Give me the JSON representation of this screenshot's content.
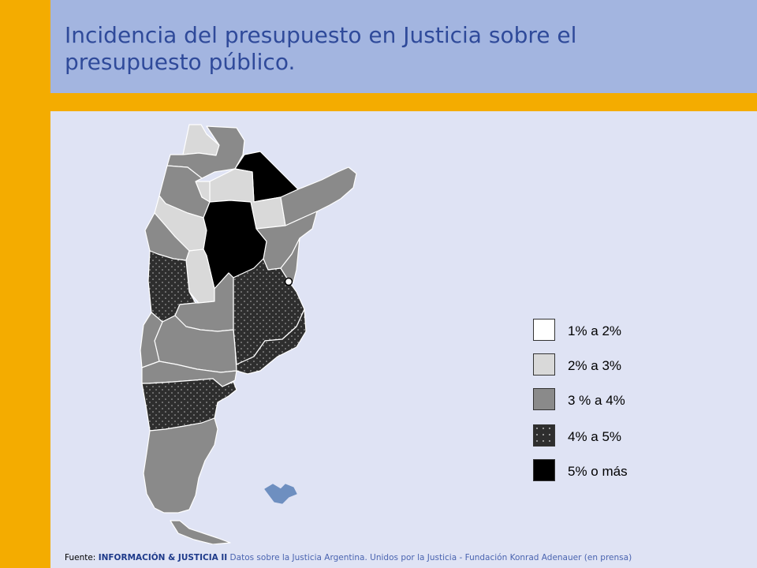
{
  "title": "Incidencia del presupuesto en Justicia sobre el presupuesto público.",
  "colors": {
    "c1": "#ffffff",
    "c2": "#d9d9d9",
    "c3": "#8a8a8a",
    "c4": "#2e2e2e",
    "c5": "#000000",
    "accent_orange": "#f4ac00",
    "title_band": "#a3b5e0",
    "background": "#dfe3f4"
  },
  "legend": [
    {
      "label": "1% a 2%",
      "class": "c1"
    },
    {
      "label": "2% a 3%",
      "class": "c2"
    },
    {
      "label": "3 % a 4%",
      "class": "c3"
    },
    {
      "label": "4% a 5%",
      "class": "c4"
    },
    {
      "label": "5% o más",
      "class": "c5"
    }
  ],
  "source": {
    "prefix": "Fuente: ",
    "bold": "INFORMACIÓN & JUSTICIA II",
    "rest": " Datos sobre la Justicia Argentina.  Unidos por la Justicia - Fundación Konrad Adenauer (en prensa)"
  }
}
